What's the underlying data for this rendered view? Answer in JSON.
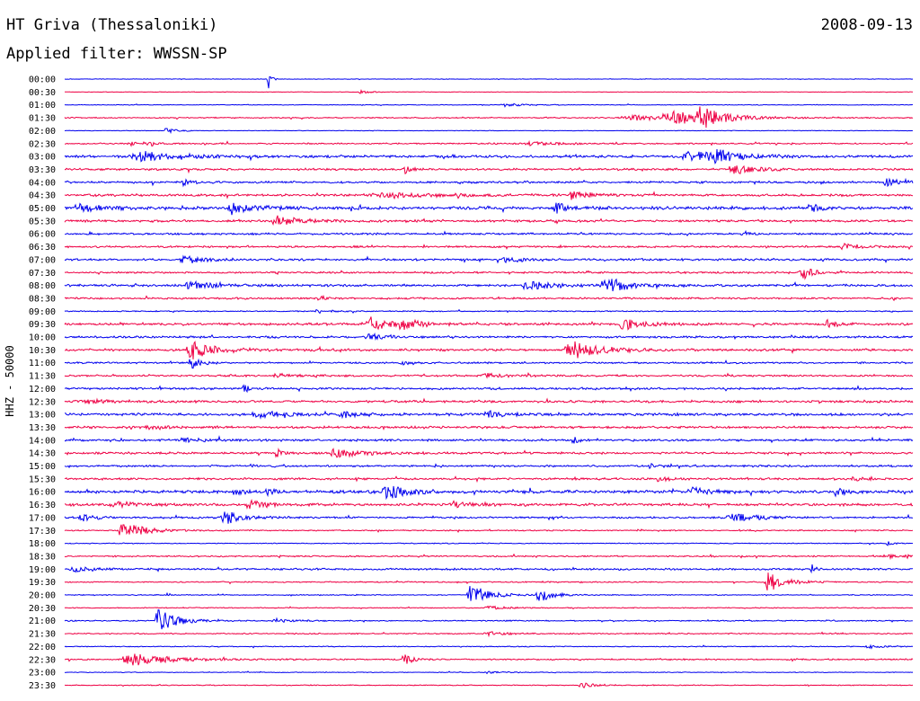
{
  "header": {
    "station": "HT Griva (Thessaloniki)",
    "date": "2008-09-13",
    "filter_text": "Applied filter: WWSSN-SP"
  },
  "chart_data": {
    "type": "helicorder",
    "channel_label": "HHZ - 50000",
    "row_labels": [
      "00:00",
      "00:30",
      "01:00",
      "01:30",
      "02:00",
      "02:30",
      "03:00",
      "03:30",
      "04:00",
      "04:30",
      "05:00",
      "05:30",
      "06:00",
      "06:30",
      "07:00",
      "07:30",
      "08:00",
      "08:30",
      "09:00",
      "09:30",
      "10:00",
      "10:30",
      "11:00",
      "11:30",
      "12:00",
      "12:30",
      "13:00",
      "13:30",
      "14:00",
      "14:30",
      "15:00",
      "15:30",
      "16:00",
      "16:30",
      "17:00",
      "17:30",
      "18:00",
      "18:30",
      "19:00",
      "19:30",
      "20:00",
      "20:30",
      "21:00",
      "21:30",
      "22:00",
      "22:30",
      "23:00",
      "23:30"
    ],
    "trace_colors": [
      "#0000ee",
      "#ee0044"
    ],
    "noise": [
      0.25,
      0.2,
      0.3,
      0.5,
      0.25,
      0.6,
      1.1,
      0.9,
      0.9,
      1.0,
      1.3,
      1.0,
      0.8,
      0.8,
      0.9,
      0.8,
      1.0,
      0.8,
      0.5,
      1.0,
      0.9,
      1.0,
      0.7,
      0.8,
      0.9,
      1.0,
      1.1,
      1.0,
      0.9,
      0.9,
      0.8,
      0.9,
      1.3,
      1.1,
      0.8,
      0.5,
      0.4,
      0.6,
      0.8,
      0.5,
      0.4,
      0.4,
      0.5,
      0.5,
      0.4,
      0.6,
      0.3,
      0.4
    ],
    "events": [
      [
        [
          0.24,
          14,
          0.003
        ]
      ],
      [
        [
          0.35,
          2,
          0.012
        ]
      ],
      [
        [
          0.52,
          2,
          0.02
        ]
      ],
      [
        [
          0.72,
          6,
          0.05
        ],
        [
          0.75,
          10,
          0.02
        ],
        [
          0.67,
          3,
          0.05
        ]
      ],
      [
        [
          0.12,
          3,
          0.01
        ]
      ],
      [
        [
          0.08,
          2,
          0.02
        ],
        [
          0.55,
          2,
          0.03
        ]
      ],
      [
        [
          0.09,
          5,
          0.04
        ],
        [
          0.74,
          6,
          0.04
        ],
        [
          0.77,
          8,
          0.015
        ]
      ],
      [
        [
          0.4,
          6,
          0.006
        ],
        [
          0.79,
          5,
          0.025
        ]
      ],
      [
        [
          0.14,
          3,
          0.01
        ],
        [
          0.97,
          4,
          0.02
        ]
      ],
      [
        [
          0.6,
          6,
          0.015
        ],
        [
          0.38,
          2,
          0.08
        ]
      ],
      [
        [
          0.02,
          4,
          0.03
        ],
        [
          0.2,
          4,
          0.03
        ],
        [
          0.58,
          6,
          0.01
        ],
        [
          0.88,
          5,
          0.01
        ]
      ],
      [
        [
          0.25,
          5,
          0.03
        ]
      ],
      [
        [
          0.8,
          3,
          0.01
        ]
      ],
      [
        [
          0.92,
          3,
          0.02
        ]
      ],
      [
        [
          0.14,
          6,
          0.02
        ],
        [
          0.52,
          3,
          0.02
        ]
      ],
      [
        [
          0.87,
          9,
          0.012
        ]
      ],
      [
        [
          0.15,
          4,
          0.03
        ],
        [
          0.55,
          4,
          0.03
        ],
        [
          0.64,
          8,
          0.025
        ]
      ],
      [
        [
          0.3,
          4,
          0.006
        ]
      ],
      [
        [
          0.3,
          2,
          0.02
        ]
      ],
      [
        [
          0.36,
          8,
          0.02
        ],
        [
          0.4,
          6,
          0.02
        ],
        [
          0.66,
          6,
          0.02
        ],
        [
          0.9,
          5,
          0.01
        ]
      ],
      [
        [
          0.36,
          3,
          0.02
        ]
      ],
      [
        [
          0.15,
          10,
          0.025
        ],
        [
          0.6,
          9,
          0.035
        ]
      ],
      [
        [
          0.15,
          8,
          0.01
        ],
        [
          0.4,
          2,
          0.02
        ]
      ],
      [
        [
          0.25,
          2,
          0.02
        ],
        [
          0.5,
          2,
          0.03
        ]
      ],
      [
        [
          0.21,
          5,
          0.005
        ]
      ],
      [
        [
          0.03,
          2,
          0.03
        ]
      ],
      [
        [
          0.23,
          3,
          0.03
        ],
        [
          0.33,
          3,
          0.02
        ],
        [
          0.5,
          3,
          0.02
        ]
      ],
      [
        [
          0.1,
          2,
          0.02
        ]
      ],
      [
        [
          0.6,
          4,
          0.006
        ],
        [
          0.14,
          2,
          0.03
        ]
      ],
      [
        [
          0.25,
          8,
          0.005
        ],
        [
          0.32,
          5,
          0.025
        ]
      ],
      [
        [
          0.22,
          2,
          0.005
        ],
        [
          0.69,
          4,
          0.004
        ]
      ],
      [
        [
          0.7,
          4,
          0.01
        ],
        [
          0.93,
          3,
          0.01
        ]
      ],
      [
        [
          0.2,
          3,
          0.01
        ],
        [
          0.24,
          3,
          0.01
        ],
        [
          0.38,
          9,
          0.02
        ],
        [
          0.74,
          4,
          0.02
        ],
        [
          0.91,
          4,
          0.01
        ]
      ],
      [
        [
          0.06,
          4,
          0.02
        ],
        [
          0.22,
          4,
          0.02
        ],
        [
          0.46,
          3,
          0.02
        ]
      ],
      [
        [
          0.02,
          4,
          0.015
        ],
        [
          0.19,
          8,
          0.02
        ],
        [
          0.79,
          4,
          0.03
        ]
      ],
      [
        [
          0.07,
          9,
          0.025
        ]
      ],
      [
        [
          0.97,
          3,
          0.004
        ]
      ],
      [
        [
          0.98,
          2,
          0.05
        ]
      ],
      [
        [
          0.01,
          3,
          0.02
        ],
        [
          0.88,
          6,
          0.004
        ]
      ],
      [
        [
          0.83,
          11,
          0.018
        ]
      ],
      [
        [
          0.48,
          12,
          0.02
        ],
        [
          0.56,
          8,
          0.015
        ],
        [
          0.12,
          4,
          0.003
        ]
      ],
      [
        [
          0.5,
          2,
          0.02
        ]
      ],
      [
        [
          0.11,
          13,
          0.02
        ],
        [
          0.25,
          2,
          0.02
        ]
      ],
      [
        [
          0.5,
          2,
          0.02
        ]
      ],
      [
        [
          0.95,
          2,
          0.02
        ]
      ],
      [
        [
          0.08,
          7,
          0.04
        ],
        [
          0.4,
          7,
          0.008
        ]
      ],
      [
        [
          0.5,
          1,
          0.02
        ]
      ],
      [
        [
          0.61,
          3,
          0.015
        ]
      ]
    ]
  }
}
